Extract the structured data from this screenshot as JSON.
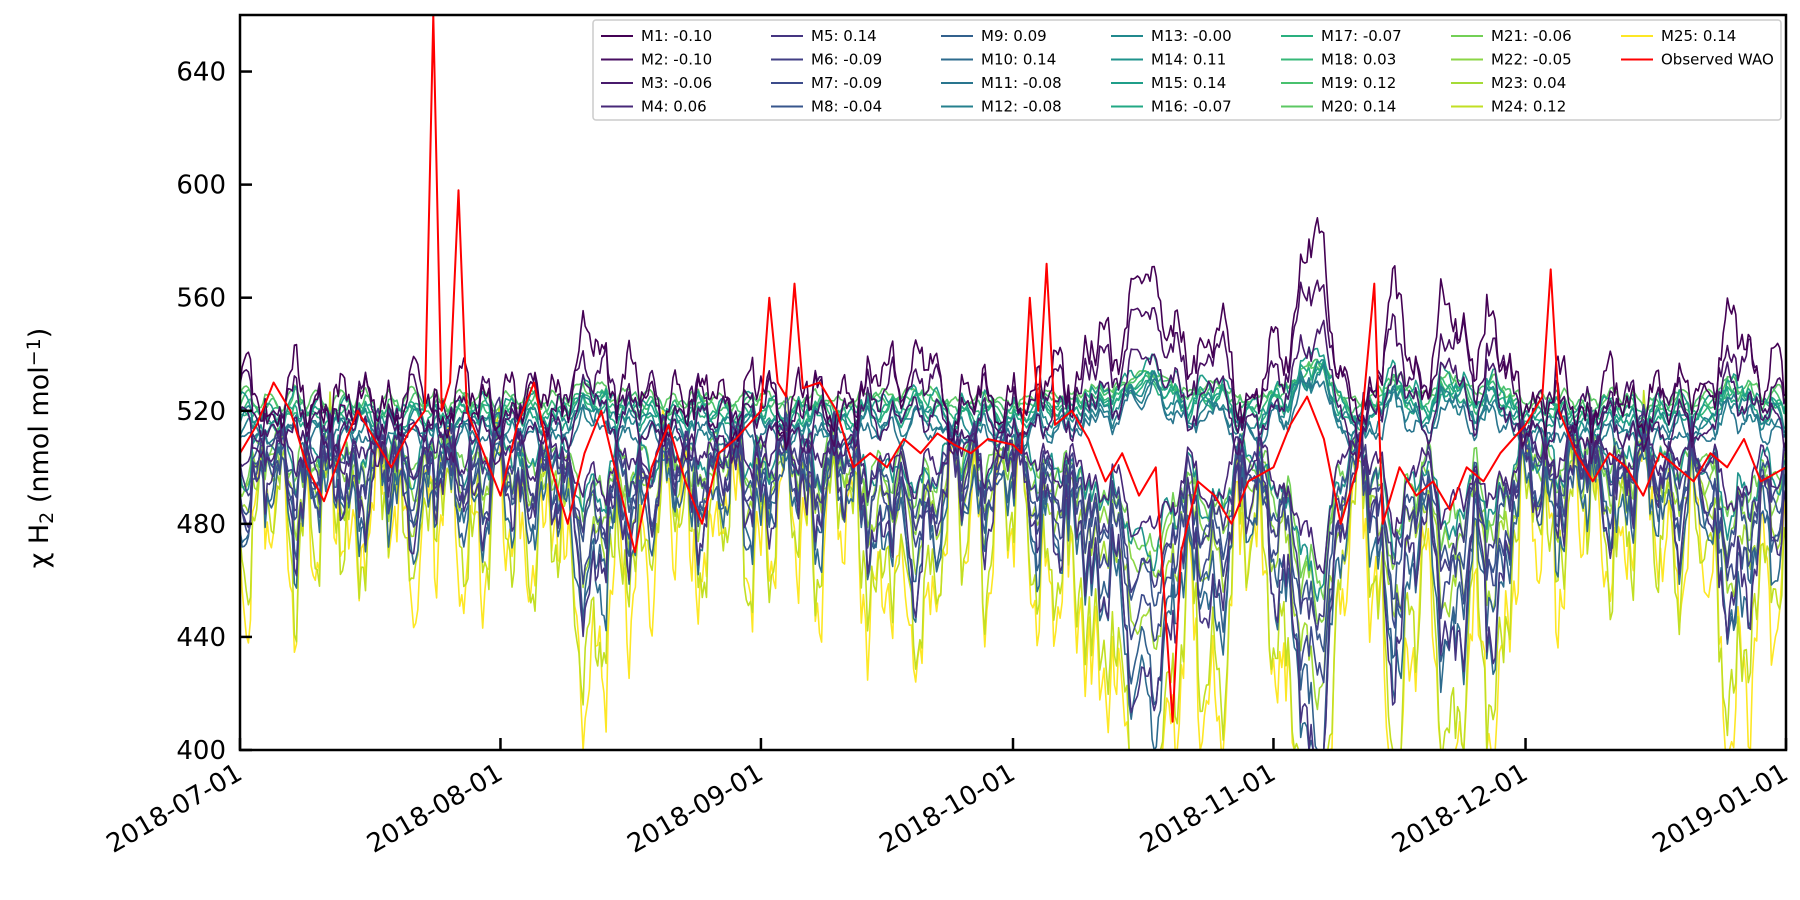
{
  "chart_data": {
    "type": "line",
    "title": "",
    "xlabel": "",
    "ylabel_parts": [
      "χ H",
      "2",
      " (nmol mol",
      "−1",
      ")"
    ],
    "xlim": [
      "2018-07-01",
      "2019-01-01"
    ],
    "ylim": [
      400,
      660
    ],
    "yticks": [
      400,
      440,
      480,
      520,
      560,
      600,
      640
    ],
    "xticks": [
      "2018-07-01",
      "2018-08-01",
      "2018-09-01",
      "2018-10-01",
      "2018-11-01",
      "2018-12-01",
      "2019-01-01"
    ],
    "legend_position": "upper-right",
    "grid": false,
    "colormap": "viridis",
    "note_series": "model series y-values are approximate readings of the central tendency; observed series points are approximate",
    "series": [
      {
        "name": "M1: -0.10",
        "color": "#440154",
        "base": 524,
        "amp": 16,
        "spread": 1.0
      },
      {
        "name": "M2: -0.10",
        "color": "#470e61",
        "base": 521,
        "amp": 14,
        "spread": 0.9
      },
      {
        "name": "M3: -0.06",
        "color": "#481a6c",
        "base": 512,
        "amp": 13,
        "spread": 0.8
      },
      {
        "name": "M4: 0.06",
        "color": "#472878",
        "base": 506,
        "amp": 13,
        "spread": 0.8
      },
      {
        "name": "M5: 0.14",
        "color": "#453581",
        "base": 495,
        "amp": 22,
        "spread": 1.3
      },
      {
        "name": "M6: -0.09",
        "color": "#423f85",
        "base": 503,
        "amp": 16,
        "spread": 1.0
      },
      {
        "name": "M7: -0.09",
        "color": "#3c4b8b",
        "base": 497,
        "amp": 18,
        "spread": 1.1
      },
      {
        "name": "M8: -0.04",
        "color": "#37568c",
        "base": 500,
        "amp": 16,
        "spread": 1.0
      },
      {
        "name": "M9: 0.09",
        "color": "#32618d",
        "base": 492,
        "amp": 20,
        "spread": 1.2
      },
      {
        "name": "M10: 0.14",
        "color": "#2d6b8e",
        "base": 491,
        "amp": 22,
        "spread": 1.3
      },
      {
        "name": "M11: -0.08",
        "color": "#29758e",
        "base": 510,
        "amp": 10,
        "spread": 0.6
      },
      {
        "name": "M12: -0.08",
        "color": "#25808e",
        "base": 512,
        "amp": 10,
        "spread": 0.6
      },
      {
        "name": "M13: -0.00",
        "color": "#21898d",
        "base": 515,
        "amp": 9,
        "spread": 0.6
      },
      {
        "name": "M14: 0.11",
        "color": "#1f938c",
        "base": 505,
        "amp": 14,
        "spread": 0.9
      },
      {
        "name": "M15: 0.14",
        "color": "#1f9e89",
        "base": 520,
        "amp": 10,
        "spread": 0.6
      },
      {
        "name": "M16: -0.07",
        "color": "#22a884",
        "base": 517,
        "amp": 9,
        "spread": 0.6
      },
      {
        "name": "M17: -0.07",
        "color": "#2ab07f",
        "base": 518,
        "amp": 8,
        "spread": 0.5
      },
      {
        "name": "M18: 0.03",
        "color": "#37b878",
        "base": 520,
        "amp": 8,
        "spread": 0.5
      },
      {
        "name": "M19: 0.12",
        "color": "#48c16e",
        "base": 522,
        "amp": 8,
        "spread": 0.5
      },
      {
        "name": "M20: 0.14",
        "color": "#5cc863",
        "base": 524,
        "amp": 7,
        "spread": 0.5
      },
      {
        "name": "M21: -0.06",
        "color": "#73d056",
        "base": 505,
        "amp": 14,
        "spread": 0.9
      },
      {
        "name": "M22: -0.05",
        "color": "#8bd646",
        "base": 500,
        "amp": 15,
        "spread": 0.9
      },
      {
        "name": "M23: 0.04",
        "color": "#a5db36",
        "base": 495,
        "amp": 18,
        "spread": 1.1
      },
      {
        "name": "M24: 0.12",
        "color": "#c2df23",
        "base": 483,
        "amp": 26,
        "spread": 1.5
      },
      {
        "name": "M25: 0.14",
        "color": "#fde725",
        "base": 480,
        "amp": 28,
        "spread": 1.6
      },
      {
        "name": "Observed WAO",
        "color": "#ff0000",
        "observed": true
      }
    ],
    "observed_points": [
      [
        "2018-07-01",
        505
      ],
      [
        "2018-07-03",
        515
      ],
      [
        "2018-07-05",
        530
      ],
      [
        "2018-07-07",
        520
      ],
      [
        "2018-07-09",
        500
      ],
      [
        "2018-07-11",
        488
      ],
      [
        "2018-07-13",
        505
      ],
      [
        "2018-07-15",
        520
      ],
      [
        "2018-07-17",
        510
      ],
      [
        "2018-07-19",
        500
      ],
      [
        "2018-07-21",
        512
      ],
      [
        "2018-07-23",
        520
      ],
      [
        "2018-07-24",
        660
      ],
      [
        "2018-07-25",
        520
      ],
      [
        "2018-07-26",
        530
      ],
      [
        "2018-07-27",
        598
      ],
      [
        "2018-07-28",
        520
      ],
      [
        "2018-07-30",
        505
      ],
      [
        "2018-08-01",
        490
      ],
      [
        "2018-08-03",
        515
      ],
      [
        "2018-08-05",
        530
      ],
      [
        "2018-08-07",
        500
      ],
      [
        "2018-08-09",
        480
      ],
      [
        "2018-08-11",
        505
      ],
      [
        "2018-08-13",
        520
      ],
      [
        "2018-08-15",
        495
      ],
      [
        "2018-08-17",
        470
      ],
      [
        "2018-08-19",
        500
      ],
      [
        "2018-08-21",
        515
      ],
      [
        "2018-08-23",
        495
      ],
      [
        "2018-08-25",
        480
      ],
      [
        "2018-08-27",
        505
      ],
      [
        "2018-08-29",
        510
      ],
      [
        "2018-09-01",
        520
      ],
      [
        "2018-09-02",
        560
      ],
      [
        "2018-09-03",
        530
      ],
      [
        "2018-09-04",
        525
      ],
      [
        "2018-09-05",
        565
      ],
      [
        "2018-09-06",
        528
      ],
      [
        "2018-09-08",
        530
      ],
      [
        "2018-09-10",
        520
      ],
      [
        "2018-09-12",
        500
      ],
      [
        "2018-09-14",
        505
      ],
      [
        "2018-09-16",
        500
      ],
      [
        "2018-09-18",
        510
      ],
      [
        "2018-09-20",
        505
      ],
      [
        "2018-09-22",
        512
      ],
      [
        "2018-09-24",
        508
      ],
      [
        "2018-09-26",
        505
      ],
      [
        "2018-09-28",
        510
      ],
      [
        "2018-10-01",
        508
      ],
      [
        "2018-10-02",
        505
      ],
      [
        "2018-10-03",
        560
      ],
      [
        "2018-10-04",
        520
      ],
      [
        "2018-10-05",
        572
      ],
      [
        "2018-10-06",
        515
      ],
      [
        "2018-10-08",
        520
      ],
      [
        "2018-10-10",
        510
      ],
      [
        "2018-10-12",
        495
      ],
      [
        "2018-10-14",
        505
      ],
      [
        "2018-10-16",
        490
      ],
      [
        "2018-10-18",
        500
      ],
      [
        "2018-10-20",
        410
      ],
      [
        "2018-10-21",
        470
      ],
      [
        "2018-10-23",
        495
      ],
      [
        "2018-10-25",
        490
      ],
      [
        "2018-10-27",
        480
      ],
      [
        "2018-10-29",
        495
      ],
      [
        "2018-11-01",
        500
      ],
      [
        "2018-11-03",
        515
      ],
      [
        "2018-11-05",
        525
      ],
      [
        "2018-11-07",
        510
      ],
      [
        "2018-11-09",
        480
      ],
      [
        "2018-11-11",
        500
      ],
      [
        "2018-11-13",
        565
      ],
      [
        "2018-11-14",
        480
      ],
      [
        "2018-11-16",
        500
      ],
      [
        "2018-11-18",
        490
      ],
      [
        "2018-11-20",
        495
      ],
      [
        "2018-11-22",
        485
      ],
      [
        "2018-11-24",
        500
      ],
      [
        "2018-11-26",
        495
      ],
      [
        "2018-11-28",
        505
      ],
      [
        "2018-12-01",
        515
      ],
      [
        "2018-12-03",
        525
      ],
      [
        "2018-12-04",
        570
      ],
      [
        "2018-12-05",
        520
      ],
      [
        "2018-12-07",
        505
      ],
      [
        "2018-12-09",
        495
      ],
      [
        "2018-12-11",
        505
      ],
      [
        "2018-12-13",
        500
      ],
      [
        "2018-12-15",
        490
      ],
      [
        "2018-12-17",
        505
      ],
      [
        "2018-12-19",
        500
      ],
      [
        "2018-12-21",
        495
      ],
      [
        "2018-12-23",
        505
      ],
      [
        "2018-12-25",
        500
      ],
      [
        "2018-12-27",
        510
      ],
      [
        "2018-12-29",
        495
      ],
      [
        "2019-01-01",
        500
      ]
    ]
  }
}
